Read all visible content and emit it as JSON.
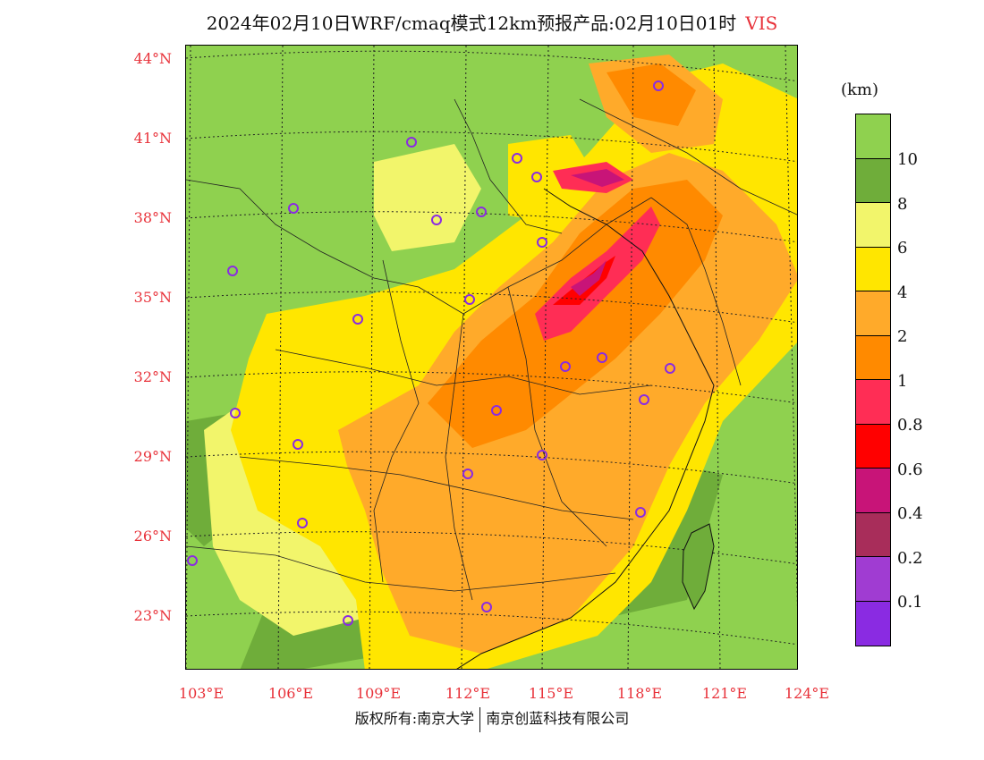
{
  "title": {
    "main": "2024年02月10日WRF/cmaq模式12km预报产品:02月10日01时",
    "variable": "VIS"
  },
  "lat_labels": [
    "44°N",
    "41°N",
    "38°N",
    "35°N",
    "32°N",
    "29°N",
    "26°N",
    "23°N"
  ],
  "lon_labels": [
    "103°E",
    "106°E",
    "109°E",
    "112°E",
    "115°E",
    "118°E",
    "121°E",
    "124°E"
  ],
  "legend": {
    "unit": "(km)",
    "labels": [
      "10",
      "8",
      "6",
      "4",
      "2",
      "1",
      "0.8",
      "0.6",
      "0.4",
      "0.2",
      "0.1"
    ],
    "colors": [
      "#8fd14f",
      "#6fad3a",
      "#f2f56b",
      "#ffe600",
      "#ffaa2a",
      "#ff8a00",
      "#ff2d55",
      "#ff0000",
      "#c81478",
      "#a82d5a",
      "#a03cd2",
      "#8a2be2"
    ]
  },
  "footer": {
    "left": "版权所有:南京大学",
    "right": "南京创蓝科技有限公司"
  }
}
